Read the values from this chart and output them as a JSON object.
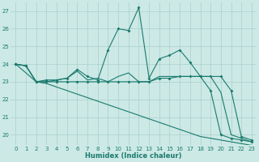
{
  "x": [
    0,
    1,
    2,
    3,
    4,
    5,
    6,
    7,
    8,
    9,
    10,
    11,
    12,
    13,
    14,
    15,
    16,
    17,
    18,
    19,
    20,
    21,
    22,
    23
  ],
  "line_spike": [
    24.0,
    23.9,
    23.0,
    23.1,
    23.1,
    23.2,
    23.7,
    23.3,
    23.1,
    24.8,
    26.0,
    25.9,
    27.2,
    23.2,
    24.3,
    24.5,
    24.8,
    24.1,
    23.3,
    22.5,
    20.0,
    19.8,
    19.7,
    19.6
  ],
  "line_flat": [
    24.0,
    23.9,
    23.0,
    23.0,
    23.0,
    23.0,
    23.0,
    23.0,
    23.0,
    23.0,
    23.0,
    23.0,
    23.0,
    23.0,
    23.2,
    23.2,
    23.3,
    23.3,
    23.3,
    23.3,
    23.3,
    22.5,
    19.9,
    19.7
  ],
  "line_mid": [
    24.0,
    23.9,
    23.0,
    23.0,
    23.1,
    23.2,
    23.6,
    23.1,
    23.2,
    23.0,
    23.3,
    23.5,
    23.0,
    23.0,
    23.3,
    23.3,
    23.3,
    23.3,
    23.3,
    23.3,
    22.4,
    20.0,
    19.8,
    19.6
  ],
  "line_decline": [
    24.0,
    23.5,
    23.0,
    22.9,
    22.7,
    22.5,
    22.3,
    22.1,
    21.9,
    21.7,
    21.5,
    21.3,
    21.1,
    20.9,
    20.7,
    20.5,
    20.3,
    20.1,
    19.9,
    19.8,
    19.7,
    19.6,
    19.5,
    19.4
  ],
  "color": "#1a7a6e",
  "bg_color": "#cce9e5",
  "grid_color": "#aacfcc",
  "xlabel": "Humidex (Indice chaleur)",
  "ylim": [
    19.4,
    27.5
  ],
  "xlim": [
    -0.5,
    23.5
  ],
  "yticks": [
    20,
    21,
    22,
    23,
    24,
    25,
    26,
    27
  ],
  "xticks": [
    0,
    1,
    2,
    3,
    4,
    5,
    6,
    7,
    8,
    9,
    10,
    11,
    12,
    13,
    14,
    15,
    16,
    17,
    18,
    19,
    20,
    21,
    22,
    23
  ]
}
